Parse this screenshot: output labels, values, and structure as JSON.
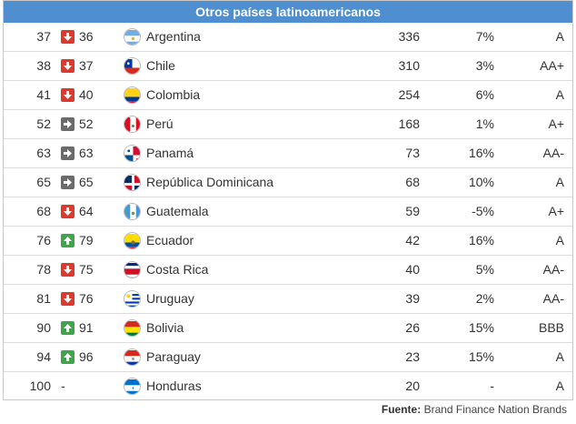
{
  "title": "Otros países latinoamericanos",
  "rows": [
    {
      "rank": "37",
      "trend": "down",
      "prev": "36",
      "country": "Argentina",
      "flag": "argentina-flag-icon",
      "value": "336",
      "change": "7%",
      "rating": "A"
    },
    {
      "rank": "38",
      "trend": "down",
      "prev": "37",
      "country": "Chile",
      "flag": "chile-flag-icon",
      "value": "310",
      "change": "3%",
      "rating": "AA+"
    },
    {
      "rank": "41",
      "trend": "down",
      "prev": "40",
      "country": "Colombia",
      "flag": "colombia-flag-icon",
      "value": "254",
      "change": "6%",
      "rating": "A"
    },
    {
      "rank": "52",
      "trend": "same",
      "prev": "52",
      "country": "Perú",
      "flag": "peru-flag-icon",
      "value": "168",
      "change": "1%",
      "rating": "A+"
    },
    {
      "rank": "63",
      "trend": "same",
      "prev": "63",
      "country": "Panamá",
      "flag": "panama-flag-icon",
      "value": "73",
      "change": "16%",
      "rating": "AA-"
    },
    {
      "rank": "65",
      "trend": "same",
      "prev": "65",
      "country": "República Dominicana",
      "flag": "dominican-republic-flag-icon",
      "value": "68",
      "change": "10%",
      "rating": "A"
    },
    {
      "rank": "68",
      "trend": "down",
      "prev": "64",
      "country": "Guatemala",
      "flag": "guatemala-flag-icon",
      "value": "59",
      "change": "-5%",
      "rating": "A+"
    },
    {
      "rank": "76",
      "trend": "up",
      "prev": "79",
      "country": "Ecuador",
      "flag": "ecuador-flag-icon",
      "value": "42",
      "change": "16%",
      "rating": "A"
    },
    {
      "rank": "78",
      "trend": "down",
      "prev": "75",
      "country": "Costa Rica",
      "flag": "costa-rica-flag-icon",
      "value": "40",
      "change": "5%",
      "rating": "AA-"
    },
    {
      "rank": "81",
      "trend": "down",
      "prev": "76",
      "country": "Uruguay",
      "flag": "uruguay-flag-icon",
      "value": "39",
      "change": "2%",
      "rating": "AA-"
    },
    {
      "rank": "90",
      "trend": "up",
      "prev": "91",
      "country": "Bolivia",
      "flag": "bolivia-flag-icon",
      "value": "26",
      "change": "15%",
      "rating": "BBB"
    },
    {
      "rank": "94",
      "trend": "up",
      "prev": "96",
      "country": "Paraguay",
      "flag": "paraguay-flag-icon",
      "value": "23",
      "change": "15%",
      "rating": "A"
    },
    {
      "rank": "100",
      "trend": "none",
      "prev": "-",
      "country": "Honduras",
      "flag": "honduras-flag-icon",
      "value": "20",
      "change": "-",
      "rating": "A"
    }
  ],
  "source": {
    "label": "Fuente:",
    "text": "Brand Finance Nation Brands"
  },
  "colors": {
    "header": "#4f8fd0",
    "down": "#e0382c",
    "up": "#3ea54b",
    "same": "#6b6b6b"
  }
}
